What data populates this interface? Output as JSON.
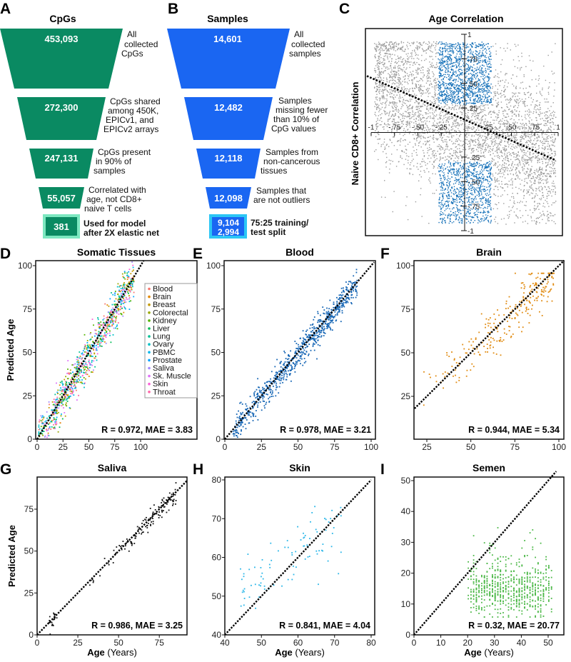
{
  "panels": {
    "A": {
      "letter": "A",
      "title": "CpGs",
      "color": "#0a8a62",
      "final_border": "#7de8c0",
      "steps": [
        {
          "value": "453,093",
          "label": [
            "All",
            "collected",
            "CpGs"
          ]
        },
        {
          "value": "272,300",
          "label": [
            "CpGs shared",
            "among 450K,",
            "EPICv1, and",
            "EPICv2 arrays"
          ]
        },
        {
          "value": "247,131",
          "label": [
            "CpGs present",
            "in 90% of",
            "samples"
          ]
        },
        {
          "value": "55,057",
          "label": [
            "Correlated with",
            "age, not CD8+",
            "naive T cells"
          ]
        }
      ],
      "final": {
        "value": "381",
        "label": [
          "Used for model",
          "after 2X elastic net"
        ]
      }
    },
    "B": {
      "letter": "B",
      "title": "Samples",
      "color": "#1a66f2",
      "final_border": "#2cc6f5",
      "steps": [
        {
          "value": "14,601",
          "label": [
            "All",
            "collected",
            "samples"
          ]
        },
        {
          "value": "12,482",
          "label": [
            "Samples",
            "missing fewer",
            "than 10% of",
            "CpG values"
          ]
        },
        {
          "value": "12,118",
          "label": [
            "Samples from",
            "non-cancerous",
            "tissues"
          ]
        },
        {
          "value": "12,098",
          "label": [
            "Samples that",
            "are not outliers"
          ]
        }
      ],
      "final": {
        "value_train": "9,104",
        "value_test": "2,994",
        "label": [
          "75:25 training/",
          "test split"
        ]
      }
    }
  },
  "chart_data": [
    {
      "id": "C",
      "letter": "C",
      "type": "scatter",
      "title": "Age Correlation",
      "xlabel": "",
      "ylabel": "Naive CD8+ Correlation",
      "xlim": [
        -1,
        1
      ],
      "ylim": [
        -1,
        1
      ],
      "xticks": [
        -1,
        -0.75,
        -0.5,
        -0.25,
        0.25,
        0.5,
        0.75,
        1
      ],
      "xtick_labels": [
        "-1",
        "-.75",
        "-.50",
        "-.25",
        ".25",
        ".50",
        ".75",
        "1"
      ],
      "yticks": [
        1,
        0.75,
        0.5,
        0.25,
        -0.25,
        -0.5,
        -0.75,
        -1
      ],
      "ytick_labels": [
        "1",
        ".75",
        ".50",
        ".25",
        "-.25",
        "-.50",
        "-.75",
        "-1"
      ],
      "trend_line": {
        "slope": -0.42,
        "intercept": 0.13
      },
      "highlight": {
        "abs_y_min": 0.29,
        "abs_x_max": 0.29,
        "color": "#1470b8"
      },
      "point_color": "#9a9a9a"
    },
    {
      "id": "D",
      "letter": "D",
      "type": "scatter",
      "title": "Somatic Tissues",
      "xlabel": "",
      "ylabel": "Predicted Age",
      "xlim": [
        0,
        154
      ],
      "ylim": [
        0,
        103
      ],
      "xticks": [
        0,
        25,
        50,
        75,
        100
      ],
      "yticks": [
        0,
        25,
        50,
        75,
        100
      ],
      "R": "0.972",
      "MAE": "3.83",
      "stat_text": "R = 0.972, MAE = 3.83",
      "legend": [
        {
          "name": "Blood",
          "color": "#f8766d"
        },
        {
          "name": "Brain",
          "color": "#e38900"
        },
        {
          "name": "Breast",
          "color": "#c49a00"
        },
        {
          "name": "Colorectal",
          "color": "#99a800"
        },
        {
          "name": "Kidney",
          "color": "#53b400"
        },
        {
          "name": "Liver",
          "color": "#00bc56"
        },
        {
          "name": "Lung",
          "color": "#00c094"
        },
        {
          "name": "Ovary",
          "color": "#00bfc4"
        },
        {
          "name": "PBMC",
          "color": "#00b6eb"
        },
        {
          "name": "Prostate",
          "color": "#06a4ff"
        },
        {
          "name": "Saliva",
          "color": "#a58aff"
        },
        {
          "name": "Sk. Muscle",
          "color": "#df70f8"
        },
        {
          "name": "Skin",
          "color": "#fb61d7"
        },
        {
          "name": "Throat",
          "color": "#ff66a8"
        }
      ]
    },
    {
      "id": "E",
      "letter": "E",
      "type": "scatter",
      "title": "Blood",
      "xlabel": "",
      "ylabel": "",
      "xlim": [
        0,
        102
      ],
      "ylim": [
        0,
        103
      ],
      "xticks": [
        0,
        25,
        50,
        75,
        100
      ],
      "yticks": [
        0,
        25,
        50,
        75,
        100
      ],
      "R": "0.978",
      "MAE": "3.21",
      "stat_text": "R = 0.978, MAE = 3.21",
      "point_color": "#1565b5"
    },
    {
      "id": "F",
      "letter": "F",
      "type": "scatter",
      "title": "Brain",
      "xlabel": "",
      "ylabel": "",
      "xlim": [
        18,
        103
      ],
      "ylim": [
        18,
        103
      ],
      "xticks": [
        25,
        50,
        75,
        100
      ],
      "yticks": [
        25,
        50,
        75,
        100
      ],
      "R": "0.944",
      "MAE": "5.34",
      "stat_text": "R = 0.944, MAE = 5.34",
      "point_color": "#e08a10"
    },
    {
      "id": "G",
      "letter": "G",
      "type": "scatter",
      "title": "Saliva",
      "xlabel_bold": "Age",
      "xlabel_rest": " (Years)",
      "ylabel": "Predicted Age",
      "xlim": [
        0,
        92
      ],
      "ylim": [
        0,
        94
      ],
      "xticks": [
        0,
        25,
        50,
        75
      ],
      "yticks": [
        0,
        25,
        50,
        75
      ],
      "R": "0.986",
      "MAE": "3.25",
      "stat_text": "R = 0.986, MAE = 3.25",
      "point_color": "#111111"
    },
    {
      "id": "H",
      "letter": "H",
      "type": "scatter",
      "title": "Skin",
      "xlabel_bold": "Age",
      "xlabel_rest": " (Years)",
      "ylabel": "",
      "xlim": [
        40,
        80
      ],
      "ylim": [
        40,
        82
      ],
      "xticks": [
        40,
        50,
        60,
        70,
        80
      ],
      "yticks": [
        40,
        50,
        60,
        70,
        80
      ],
      "R": "0.841",
      "MAE": "4.04",
      "stat_text": "R = 0.841, MAE = 4.04",
      "point_color": "#29b6e8"
    },
    {
      "id": "I",
      "letter": "I",
      "type": "scatter",
      "title": "Semen",
      "xlabel_bold": "Age",
      "xlabel_rest": " (Years)",
      "ylabel": "",
      "xlim": [
        0,
        56
      ],
      "ylim": [
        0,
        53
      ],
      "xticks": [
        0,
        10,
        20,
        30,
        40,
        50
      ],
      "yticks": [
        0,
        10,
        20,
        30,
        40,
        50
      ],
      "R": "0.32",
      "MAE": "20.77",
      "stat_text": "R = 0.32, MAE = 20.77",
      "point_color": "#4cb848"
    }
  ]
}
